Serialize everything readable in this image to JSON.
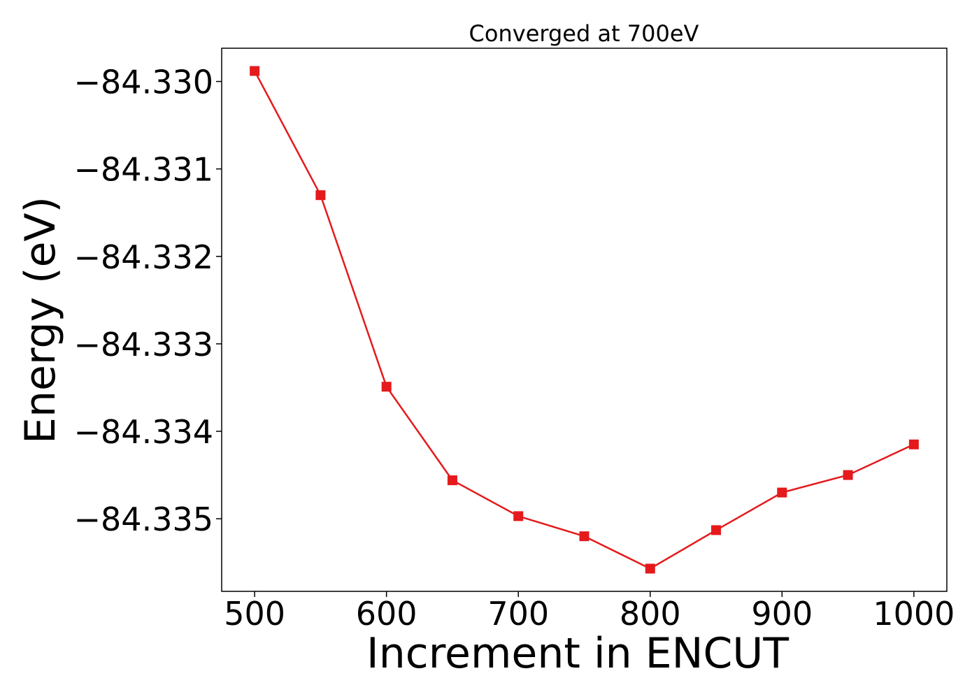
{
  "chart_data": {
    "type": "line",
    "title": "Converged at 700eV",
    "xlabel": "Increment in ENCUT",
    "ylabel": "Energy (eV)",
    "x": [
      500,
      550,
      600,
      650,
      700,
      750,
      800,
      850,
      900,
      950,
      1000
    ],
    "series": [
      {
        "values": [
          -84.32988,
          -84.3313,
          -84.33349,
          -84.33456,
          -84.33497,
          -84.3352,
          -84.33557,
          -84.33513,
          -84.3347,
          -84.3345,
          -84.33415
        ],
        "color": "#e41a1c",
        "marker": "square"
      }
    ],
    "xticks": [
      500,
      600,
      700,
      800,
      900,
      1000
    ],
    "xtick_labels": [
      "500",
      "600",
      "700",
      "800",
      "900",
      "1000"
    ],
    "yticks": [
      -84.33,
      -84.331,
      -84.332,
      -84.333,
      -84.334,
      -84.335
    ],
    "ytick_labels": [
      "−84.330",
      "−84.331",
      "−84.332",
      "−84.333",
      "−84.334",
      "−84.335"
    ],
    "xlim": [
      475,
      1025
    ],
    "ylim": [
      -84.33583,
      -84.32962
    ],
    "grid": false,
    "legend": "none"
  }
}
